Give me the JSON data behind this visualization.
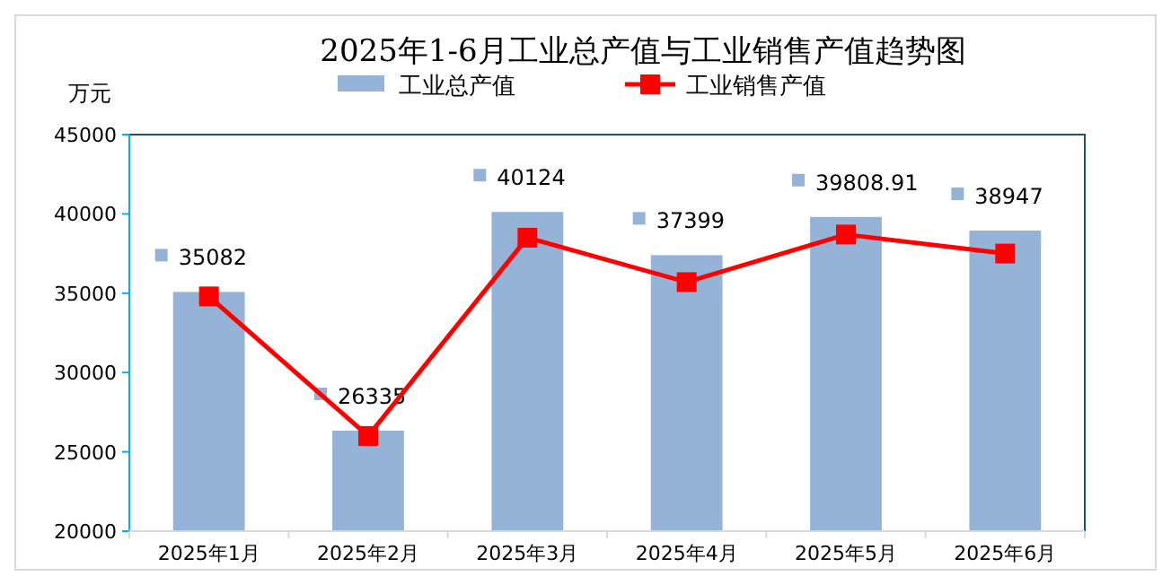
{
  "chart_data": {
    "type": "bar",
    "title": "2025年1-6月工业总产值与工业销售产值趋势图",
    "ylabel": "万元",
    "categories": [
      "2025年1月",
      "2025年2月",
      "2025年3月",
      "2025年4月",
      "2025年5月",
      "2025年6月"
    ],
    "series": [
      {
        "name": "工业总产值",
        "color": "#95b3d7",
        "values": [
          35082,
          26335,
          40124,
          37399,
          39808.91,
          38947
        ],
        "value_labels": [
          "35082",
          "26335",
          "40124",
          "37399",
          "39808.91",
          "38947"
        ]
      },
      {
        "name": "工业销售产值",
        "type": "line",
        "color": "#ff0000",
        "values": [
          34800,
          26000,
          38500,
          35700,
          38700,
          37500
        ],
        "marker": "square"
      }
    ],
    "ylim": [
      20000,
      45000
    ],
    "yticks": [
      20000,
      25000,
      30000,
      35000,
      40000,
      45000
    ],
    "grid": false,
    "legend": "top"
  }
}
